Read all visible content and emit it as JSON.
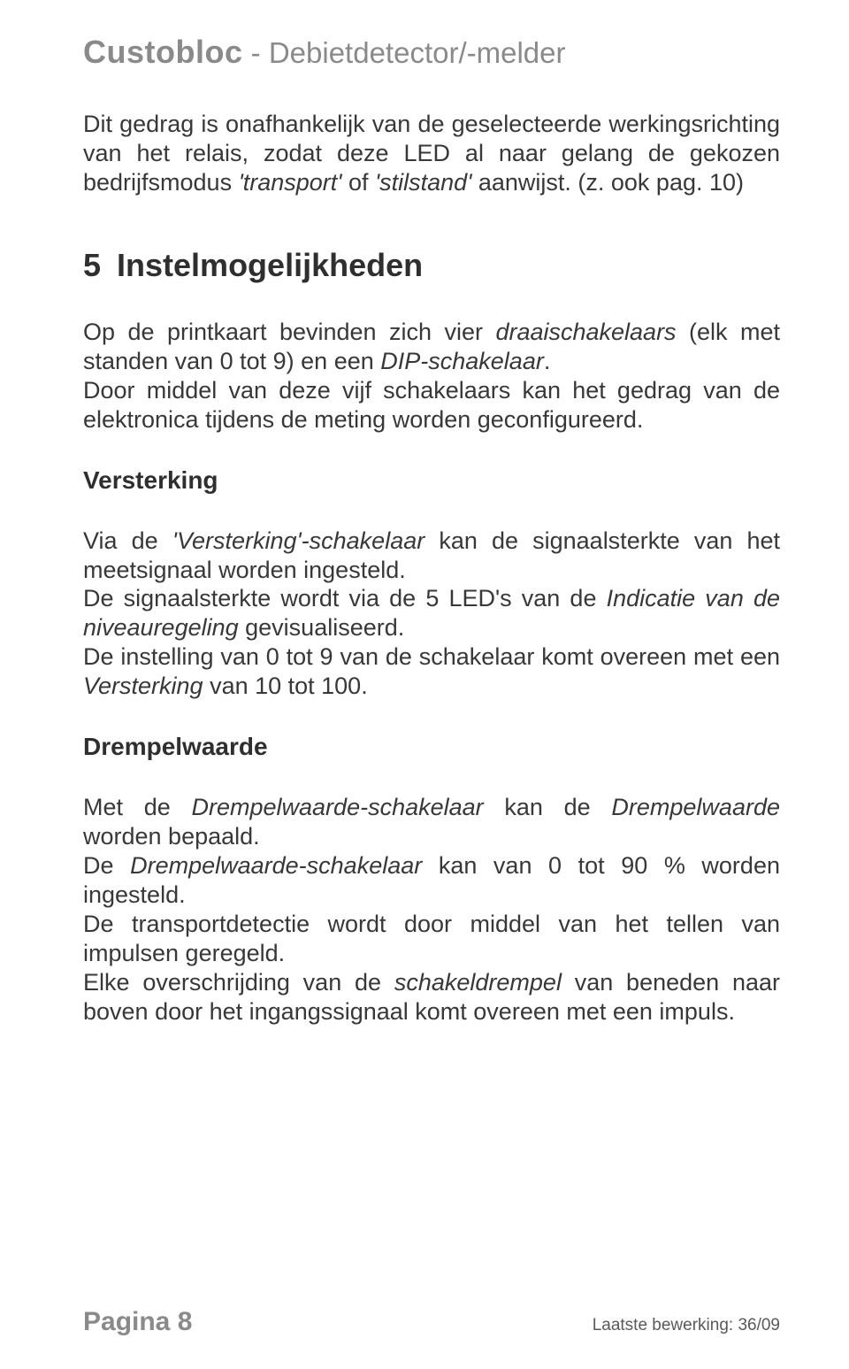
{
  "header": {
    "brand": "Custobloc",
    "separator": " - ",
    "subtitle": "Debietdetector/-melder"
  },
  "intro": {
    "p1_a": "Dit gedrag is onafhankelijk van de geselecteerde werkingsrichting van het relais, zodat deze LED al naar gelang de gekozen bedrijfsmodus ",
    "p1_b": "'transport'",
    "p1_c": " of ",
    "p1_d": "'stilstand'",
    "p1_e": " aanwijst. (z. ook pag. 10)"
  },
  "section5": {
    "num": "5",
    "title": "Instelmogelijkheden",
    "p1_a": "Op de printkaart bevinden zich vier ",
    "p1_b": "draaischakelaars",
    "p1_c": " (elk met standen van 0 tot 9) en een ",
    "p1_d": "DIP-schakelaar",
    "p1_e": ".",
    "p2": "Door middel van deze vijf schakelaars kan het gedrag van de elektronica tijdens de meting worden geconfigureerd."
  },
  "versterking": {
    "title": "Versterking",
    "p1_a": "Via de ",
    "p1_b": "'Versterking'-schakelaar",
    "p1_c": " kan de signaalsterkte van het meetsignaal worden ingesteld.",
    "p2_a": "De signaalsterkte wordt via de 5 LED's van de ",
    "p2_b": "Indicatie van de niveauregeling",
    "p2_c": " gevisualiseerd.",
    "p3_a": "De instelling van 0 tot 9 van de schakelaar komt overeen met een ",
    "p3_b": "Versterking",
    "p3_c": " van 10 tot 100."
  },
  "drempel": {
    "title": "Drempelwaarde",
    "p1_a": "Met de ",
    "p1_b": "Drempelwaarde-schakelaar",
    "p1_c": " kan de ",
    "p1_d": "Drempelwaarde",
    "p1_e": " worden bepaald.",
    "p2_a": "De ",
    "p2_b": "Drempelwaarde-schakelaar",
    "p2_c": " kan van 0 tot 90 % worden ingesteld.",
    "p3": "De transportdetectie wordt door middel van het tellen van impulsen geregeld.",
    "p4_a": "Elke overschrijding van de ",
    "p4_b": "schakeldrempel",
    "p4_c": " van beneden naar boven door het ingangssignaal komt overeen met een impuls."
  },
  "footer": {
    "page": "Pagina 8",
    "revision": "Laatste bewerking: 36/09"
  }
}
